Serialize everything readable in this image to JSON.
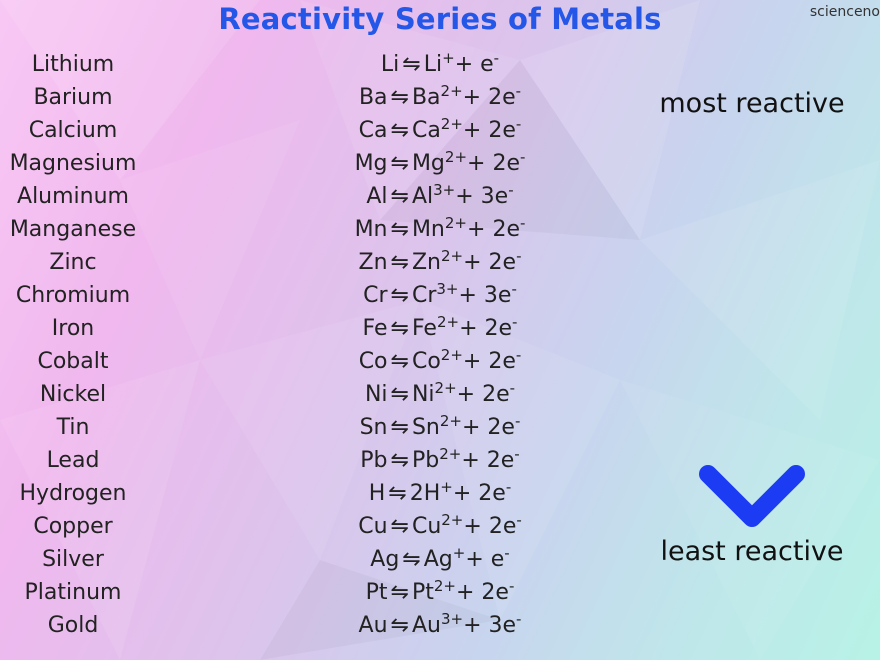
{
  "title": "Reactivity Series of Metals",
  "credit": "scienceno",
  "scale": {
    "top_label": "most reactive",
    "bottom_label": "least reactive",
    "arrow_color_top": "#d8146a",
    "arrow_color_bottom": "#1c3cf4"
  },
  "colors": {
    "title": "#2456e8",
    "text": "#222222"
  },
  "rows": [
    {
      "name": "Lithium",
      "symbol": "Li",
      "ion": "Li",
      "charge": "+",
      "suffix": "+ e",
      "electron": "-"
    },
    {
      "name": "Barium",
      "symbol": "Ba",
      "ion": "Ba",
      "charge": "2+",
      "suffix": "+ 2e",
      "electron": "-"
    },
    {
      "name": "Calcium",
      "symbol": "Ca",
      "ion": "Ca",
      "charge": "2+",
      "suffix": "+ 2e",
      "electron": "-"
    },
    {
      "name": "Magnesium",
      "symbol": "Mg",
      "ion": "Mg",
      "charge": "2+",
      "suffix": "+ 2e",
      "electron": "-"
    },
    {
      "name": "Aluminum",
      "symbol": "Al",
      "ion": "Al",
      "charge": "3+",
      "suffix": "+ 3e",
      "electron": "-"
    },
    {
      "name": "Manganese",
      "symbol": "Mn",
      "ion": "Mn",
      "charge": "2+",
      "suffix": "+ 2e",
      "electron": "-"
    },
    {
      "name": "Zinc",
      "symbol": "Zn",
      "ion": "Zn",
      "charge": "2+",
      "suffix": "+ 2e",
      "electron": "-"
    },
    {
      "name": "Chromium",
      "symbol": "Cr",
      "ion": "Cr",
      "charge": "3+",
      "suffix": "+ 3e",
      "electron": "-"
    },
    {
      "name": "Iron",
      "symbol": "Fe",
      "ion": "Fe",
      "charge": "2+",
      "suffix": "+ 2e",
      "electron": "-"
    },
    {
      "name": "Cobalt",
      "symbol": "Co",
      "ion": "Co",
      "charge": "2+",
      "suffix": "+ 2e",
      "electron": "-"
    },
    {
      "name": "Nickel",
      "symbol": "Ni",
      "ion": "Ni",
      "charge": "2+",
      "suffix": "+ 2e",
      "electron": "-"
    },
    {
      "name": "Tin",
      "symbol": "Sn",
      "ion": "Sn",
      "charge": "2+",
      "suffix": "+ 2e",
      "electron": "-"
    },
    {
      "name": "Lead",
      "symbol": "Pb",
      "ion": "Pb",
      "charge": "2+",
      "suffix": "+ 2e",
      "electron": "-"
    },
    {
      "name": "Hydrogen",
      "symbol": "H",
      "ion": "2H",
      "charge": "+",
      "suffix": "+ 2e",
      "electron": "-"
    },
    {
      "name": "Copper",
      "symbol": "Cu",
      "ion": "Cu",
      "charge": "2+",
      "suffix": "+ 2e",
      "electron": "-"
    },
    {
      "name": "Silver",
      "symbol": "Ag",
      "ion": "Ag",
      "charge": "+",
      "suffix": "+ e",
      "electron": "-"
    },
    {
      "name": "Platinum",
      "symbol": "Pt",
      "ion": "Pt",
      "charge": "2+",
      "suffix": "+ 2e",
      "electron": "-"
    },
    {
      "name": "Gold",
      "symbol": "Au",
      "ion": "Au",
      "charge": "3+",
      "suffix": "+ 3e",
      "electron": "-"
    }
  ]
}
